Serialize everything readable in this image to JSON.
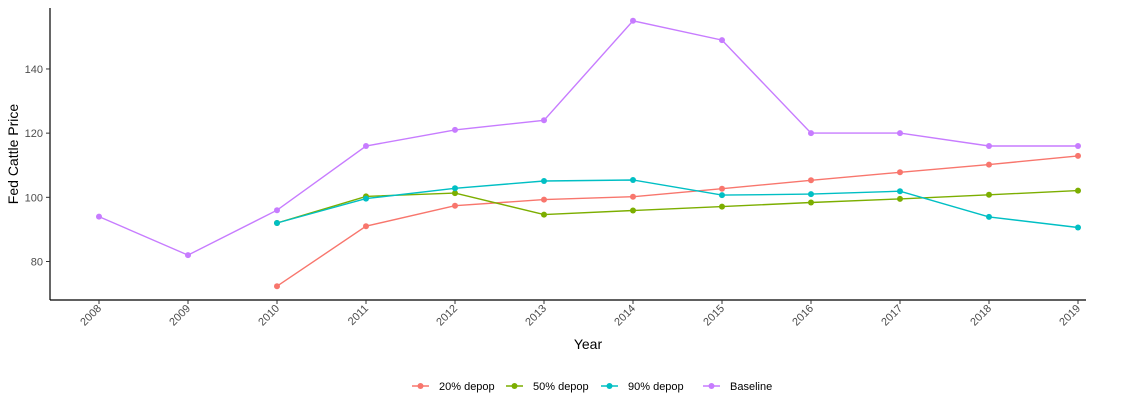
{
  "chart_data": {
    "type": "line",
    "xlabel": "Year",
    "ylabel": "Fed Cattle Price",
    "x": [
      "2008",
      "2009",
      "2010",
      "2011",
      "2012",
      "2013",
      "2014",
      "2015",
      "2016",
      "2017",
      "2018",
      "2019"
    ],
    "ylim": [
      68,
      159
    ],
    "yticks": [
      80,
      100,
      120,
      140
    ],
    "grid": false,
    "legend_position": "bottom",
    "series": [
      {
        "name": "20% depop",
        "color": "#F8766D",
        "values": [
          null,
          null,
          72.3,
          91.0,
          97.4,
          99.3,
          100.2,
          102.7,
          105.3,
          107.8,
          110.2,
          112.9
        ]
      },
      {
        "name": "50% depop",
        "color": "#7CAE00",
        "values": [
          null,
          null,
          92.0,
          100.3,
          101.3,
          94.6,
          95.9,
          97.1,
          98.4,
          99.5,
          100.8,
          102.1
        ]
      },
      {
        "name": "90% depop",
        "color": "#00BFC4",
        "values": [
          null,
          null,
          92.0,
          99.6,
          102.8,
          105.1,
          105.4,
          100.7,
          101.0,
          101.9,
          93.9,
          90.6
        ]
      },
      {
        "name": "Baseline",
        "color": "#C77CFF",
        "values": [
          94.0,
          82.0,
          96.0,
          116.0,
          121.0,
          124.0,
          155.0,
          149.0,
          120.0,
          120.0,
          116.0,
          116.0
        ]
      }
    ]
  }
}
